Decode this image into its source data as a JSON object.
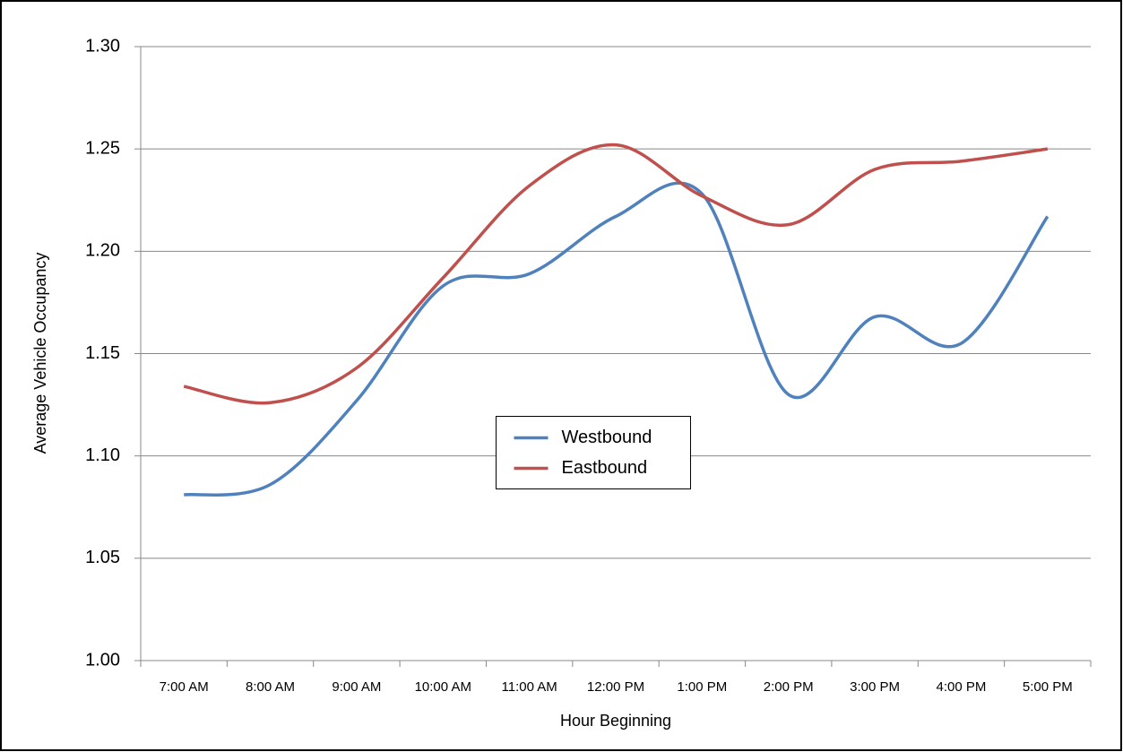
{
  "chart_data": {
    "type": "line",
    "x_label": "Hour Beginning",
    "y_label": "Average Vehicle Occupancy",
    "categories": [
      "7:00 AM",
      "8:00 AM",
      "9:00 AM",
      "10:00 AM",
      "11:00 AM",
      "12:00 PM",
      "1:00 PM",
      "2:00 PM",
      "3:00 PM",
      "4:00 PM",
      "5:00 PM"
    ],
    "series": [
      {
        "name": "Westbound",
        "color": "#4f81bd",
        "values": [
          1.081,
          1.086,
          1.127,
          1.183,
          1.189,
          1.217,
          1.228,
          1.13,
          1.168,
          1.155,
          1.217
        ]
      },
      {
        "name": "Eastbound",
        "color": "#c0504d",
        "values": [
          1.134,
          1.126,
          1.143,
          1.187,
          1.232,
          1.252,
          1.227,
          1.213,
          1.24,
          1.244,
          1.25
        ]
      }
    ],
    "ylim": [
      1.0,
      1.3
    ],
    "yticks": [
      {
        "value": 1.0,
        "label": "1.00"
      },
      {
        "value": 1.05,
        "label": "1.05"
      },
      {
        "value": 1.1,
        "label": "1.10"
      },
      {
        "value": 1.15,
        "label": "1.15"
      },
      {
        "value": 1.2,
        "label": "1.20"
      },
      {
        "value": 1.25,
        "label": "1.25"
      },
      {
        "value": 1.3,
        "label": "1.30"
      }
    ],
    "grid": true,
    "smooth": true,
    "legend": "center"
  }
}
